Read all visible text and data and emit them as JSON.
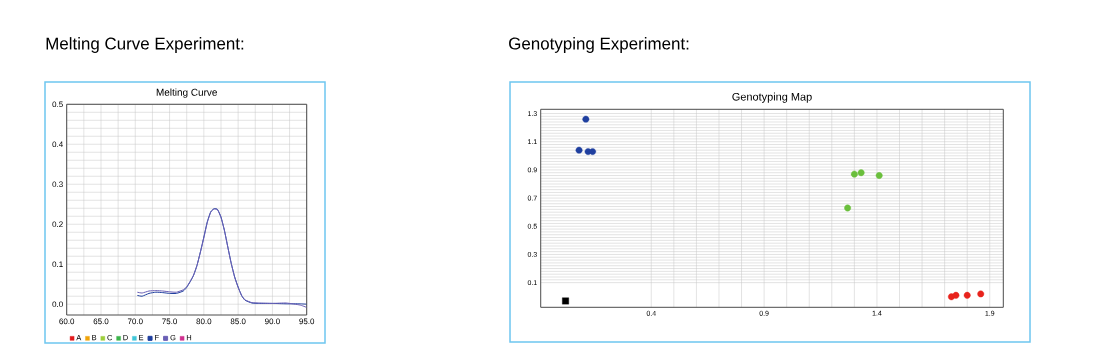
{
  "chart_data": [
    {
      "type": "line",
      "title": "Melting Curve",
      "annotations": [
        "Melting Curve Experiment:"
      ],
      "x": [
        70.3,
        71,
        72,
        73,
        74,
        75,
        76,
        77,
        77.5,
        78,
        78.5,
        79,
        79.5,
        80,
        80.5,
        81,
        81.5,
        82,
        82.5,
        83,
        83.5,
        84,
        84.5,
        85,
        85.5,
        86,
        87,
        88,
        90,
        92,
        94,
        95
      ],
      "xlim": [
        60,
        95
      ],
      "ylim": [
        -0.027,
        0.5
      ],
      "xticks": [
        {
          "value": 60,
          "label": "60.0"
        },
        {
          "value": 65,
          "label": "65.0"
        },
        {
          "value": 70,
          "label": "70.0"
        },
        {
          "value": 75,
          "label": "75.0"
        },
        {
          "value": 80,
          "label": "80.0"
        },
        {
          "value": 85,
          "label": "85.0"
        },
        {
          "value": 90,
          "label": "90.0"
        },
        {
          "value": 95,
          "label": "95.0"
        }
      ],
      "yticks": [
        {
          "value": 0,
          "label": "0.0"
        },
        0.1,
        0.2,
        0.3,
        0.4,
        0.5
      ],
      "grid": true,
      "legend": "bottom",
      "series": [
        {
          "name": "A",
          "color": "#e31a1c",
          "values": [
            null,
            null,
            null,
            null,
            null,
            null,
            null,
            null,
            null,
            null,
            null,
            null,
            null,
            null,
            null,
            null,
            null,
            null,
            null,
            null,
            null,
            null,
            null,
            null,
            null,
            null,
            null,
            null,
            null,
            null,
            null,
            null
          ]
        },
        {
          "name": "B",
          "color": "#f0a30a",
          "values": [
            null,
            null,
            null,
            null,
            null,
            null,
            null,
            null,
            null,
            null,
            null,
            null,
            null,
            null,
            null,
            null,
            null,
            null,
            null,
            null,
            null,
            null,
            null,
            null,
            null,
            null,
            null,
            null,
            null,
            null,
            null,
            null
          ]
        },
        {
          "name": "C",
          "color": "#9ecf3c",
          "values": [
            null,
            null,
            null,
            null,
            null,
            null,
            null,
            null,
            null,
            null,
            null,
            null,
            null,
            null,
            null,
            null,
            null,
            null,
            null,
            null,
            null,
            null,
            null,
            null,
            null,
            null,
            null,
            null,
            null,
            null,
            null,
            null
          ]
        },
        {
          "name": "D",
          "color": "#3cb44b",
          "values": [
            null,
            null,
            null,
            null,
            null,
            null,
            null,
            null,
            null,
            null,
            null,
            null,
            null,
            null,
            null,
            null,
            null,
            null,
            null,
            null,
            null,
            null,
            null,
            null,
            null,
            null,
            null,
            null,
            null,
            null,
            null,
            null
          ]
        },
        {
          "name": "E",
          "color": "#41c7d9",
          "values": [
            null,
            null,
            null,
            null,
            null,
            null,
            null,
            null,
            null,
            null,
            null,
            null,
            null,
            null,
            null,
            null,
            null,
            null,
            null,
            null,
            null,
            null,
            null,
            null,
            null,
            null,
            null,
            null,
            null,
            null,
            null,
            null
          ]
        },
        {
          "name": "F",
          "color": "#1f3f9f",
          "values": [
            0.022,
            0.02,
            0.027,
            0.03,
            0.029,
            0.027,
            0.027,
            0.033,
            0.042,
            0.056,
            0.072,
            0.097,
            0.131,
            0.168,
            0.206,
            0.231,
            0.239,
            0.237,
            0.218,
            0.185,
            0.143,
            0.102,
            0.068,
            0.043,
            0.022,
            0.01,
            0.003,
            0.002,
            0.002,
            0.001,
            0.001,
            0.0
          ]
        },
        {
          "name": "G",
          "color": "#6a5fb5",
          "values": [
            0.03,
            0.028,
            0.033,
            0.034,
            0.033,
            0.031,
            0.03,
            0.036,
            0.044,
            0.057,
            0.073,
            0.097,
            0.13,
            0.166,
            0.204,
            0.23,
            0.238,
            0.236,
            0.217,
            0.184,
            0.142,
            0.101,
            0.067,
            0.042,
            0.022,
            0.011,
            0.004,
            0.003,
            0.002,
            0.003,
            -0.002,
            -0.008
          ]
        },
        {
          "name": "H",
          "color": "#d0308f",
          "values": [
            null,
            null,
            null,
            null,
            null,
            null,
            null,
            null,
            null,
            null,
            null,
            null,
            null,
            null,
            null,
            null,
            null,
            null,
            null,
            null,
            null,
            null,
            null,
            null,
            null,
            null,
            null,
            null,
            null,
            null,
            null,
            null
          ]
        }
      ]
    },
    {
      "type": "scatter",
      "title": "Genotyping Map",
      "annotations": [
        "Genotyping Experiment:"
      ],
      "xlim": [
        -0.09,
        1.96
      ],
      "ylim": [
        -0.075,
        1.33
      ],
      "xticks": [
        0.4,
        0.9,
        1.4,
        1.9
      ],
      "yticks": [
        0.1,
        0.3,
        0.5,
        0.7,
        0.9,
        1.1,
        1.3
      ],
      "grid": true,
      "marker": "circle",
      "series": [
        {
          "color": "#1f3f9f",
          "x": [
            0.11,
            0.08,
            0.12,
            0.14
          ],
          "values": [
            1.26,
            1.04,
            1.03,
            1.03
          ]
        },
        {
          "color": "#6abf3c",
          "x": [
            1.27,
            1.3,
            1.33,
            1.41
          ],
          "values": [
            0.63,
            0.87,
            0.88,
            0.86
          ]
        },
        {
          "color": "#e8231c",
          "x": [
            1.73,
            1.75,
            1.8,
            1.86
          ],
          "values": [
            0.0,
            0.01,
            0.01,
            0.02
          ]
        },
        {
          "color": "#000000",
          "marker": "square",
          "x": [
            0.02
          ],
          "values": [
            -0.03
          ]
        }
      ]
    }
  ]
}
